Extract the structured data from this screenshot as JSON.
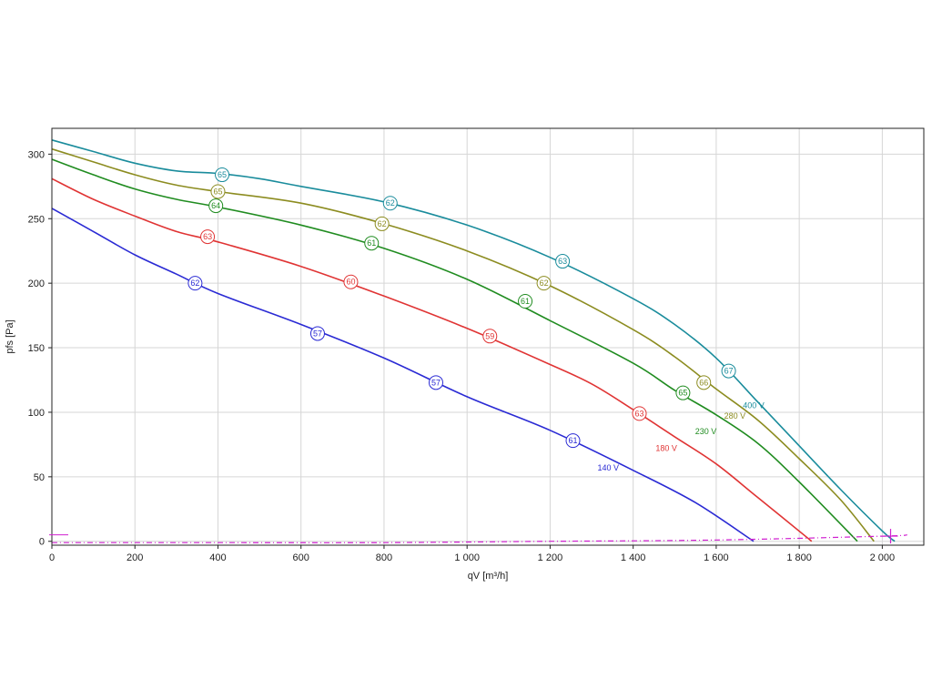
{
  "chart_data": {
    "type": "line",
    "xlabel": "qV [m³/h]",
    "ylabel": "pfs [Pa]",
    "xlim": [
      0,
      2100
    ],
    "ylim": [
      -3,
      320
    ],
    "x_ticks": [
      0,
      200,
      400,
      600,
      800,
      1000,
      1200,
      1400,
      1600,
      1800,
      2000
    ],
    "x_tick_labels": [
      "0",
      "200",
      "400",
      "600",
      "800",
      "1 000",
      "1 200",
      "1 400",
      "1 600",
      "1 800",
      "2 000"
    ],
    "y_ticks": [
      0,
      50,
      100,
      150,
      200,
      250,
      300
    ],
    "y_tick_labels": [
      "0",
      "50",
      "100",
      "150",
      "200",
      "250",
      "300"
    ],
    "grid": true,
    "series": [
      {
        "name": "140 V",
        "color": "#2a2ad4",
        "label_at": [
          1340,
          55
        ],
        "points": [
          [
            0,
            258
          ],
          [
            100,
            240
          ],
          [
            200,
            222
          ],
          [
            300,
            207
          ],
          [
            400,
            192
          ],
          [
            600,
            168
          ],
          [
            800,
            142
          ],
          [
            1000,
            112
          ],
          [
            1200,
            86
          ],
          [
            1400,
            55
          ],
          [
            1550,
            30
          ],
          [
            1690,
            0
          ]
        ],
        "markers": [
          {
            "x": 345,
            "y": 200,
            "label": "62"
          },
          {
            "x": 640,
            "y": 161,
            "label": "57"
          },
          {
            "x": 925,
            "y": 123,
            "label": "57"
          },
          {
            "x": 1255,
            "y": 78,
            "label": "61"
          }
        ]
      },
      {
        "name": "180 V",
        "color": "#e03434",
        "label_at": [
          1480,
          70
        ],
        "points": [
          [
            0,
            281
          ],
          [
            100,
            265
          ],
          [
            200,
            252
          ],
          [
            300,
            240
          ],
          [
            400,
            232
          ],
          [
            600,
            213
          ],
          [
            800,
            190
          ],
          [
            1000,
            165
          ],
          [
            1200,
            137
          ],
          [
            1300,
            122
          ],
          [
            1400,
            102
          ],
          [
            1500,
            81
          ],
          [
            1600,
            60
          ],
          [
            1700,
            34
          ],
          [
            1830,
            0
          ]
        ],
        "markers": [
          {
            "x": 375,
            "y": 236,
            "label": "63"
          },
          {
            "x": 720,
            "y": 201,
            "label": "60"
          },
          {
            "x": 1055,
            "y": 159,
            "label": "59"
          },
          {
            "x": 1415,
            "y": 99,
            "label": "63"
          }
        ]
      },
      {
        "name": "230 V",
        "color": "#208c20",
        "label_at": [
          1575,
          83
        ],
        "points": [
          [
            0,
            296
          ],
          [
            100,
            284
          ],
          [
            200,
            273
          ],
          [
            300,
            265
          ],
          [
            400,
            259
          ],
          [
            600,
            245
          ],
          [
            800,
            227
          ],
          [
            1000,
            203
          ],
          [
            1200,
            171
          ],
          [
            1400,
            138
          ],
          [
            1500,
            117
          ],
          [
            1600,
            98
          ],
          [
            1700,
            76
          ],
          [
            1800,
            46
          ],
          [
            1940,
            0
          ]
        ],
        "markers": [
          {
            "x": 395,
            "y": 260,
            "label": "64"
          },
          {
            "x": 770,
            "y": 231,
            "label": "61"
          },
          {
            "x": 1140,
            "y": 186,
            "label": "61"
          },
          {
            "x": 1520,
            "y": 115,
            "label": "65"
          }
        ]
      },
      {
        "name": "280 V",
        "color": "#8c8c20",
        "label_at": [
          1645,
          95
        ],
        "points": [
          [
            0,
            304
          ],
          [
            100,
            294
          ],
          [
            200,
            284
          ],
          [
            300,
            276
          ],
          [
            400,
            271
          ],
          [
            600,
            262
          ],
          [
            800,
            246
          ],
          [
            1000,
            225
          ],
          [
            1200,
            198
          ],
          [
            1400,
            164
          ],
          [
            1500,
            143
          ],
          [
            1600,
            118
          ],
          [
            1700,
            94
          ],
          [
            1800,
            64
          ],
          [
            1900,
            32
          ],
          [
            1980,
            0
          ]
        ],
        "markers": [
          {
            "x": 400,
            "y": 271,
            "label": "65"
          },
          {
            "x": 795,
            "y": 246,
            "label": "62"
          },
          {
            "x": 1185,
            "y": 200,
            "label": "62"
          },
          {
            "x": 1570,
            "y": 123,
            "label": "66"
          }
        ]
      },
      {
        "name": "400 V",
        "color": "#1a8c9c",
        "label_at": [
          1690,
          103
        ],
        "points": [
          [
            0,
            311
          ],
          [
            100,
            302
          ],
          [
            200,
            293
          ],
          [
            300,
            287
          ],
          [
            400,
            285
          ],
          [
            500,
            281
          ],
          [
            600,
            275
          ],
          [
            800,
            263
          ],
          [
            1000,
            245
          ],
          [
            1200,
            220
          ],
          [
            1400,
            188
          ],
          [
            1500,
            168
          ],
          [
            1600,
            142
          ],
          [
            1700,
            108
          ],
          [
            1800,
            74
          ],
          [
            1900,
            40
          ],
          [
            2000,
            8
          ],
          [
            2030,
            0
          ]
        ],
        "markers": [
          {
            "x": 410,
            "y": 284,
            "label": "65"
          },
          {
            "x": 815,
            "y": 262,
            "label": "62"
          },
          {
            "x": 1230,
            "y": 217,
            "label": "63"
          },
          {
            "x": 1630,
            "y": 132,
            "label": "67"
          }
        ]
      },
      {
        "name": "",
        "color": "#d020d0",
        "dash": true,
        "points": [
          [
            0,
            -1
          ],
          [
            400,
            -1
          ],
          [
            800,
            -1
          ],
          [
            1200,
            0
          ],
          [
            1600,
            1
          ],
          [
            2000,
            4
          ],
          [
            2060,
            5
          ]
        ],
        "markers": []
      }
    ]
  }
}
